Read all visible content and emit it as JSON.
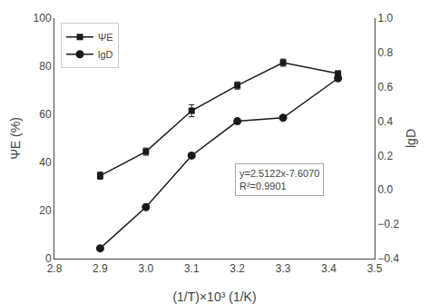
{
  "chart_data": {
    "type": "line",
    "x": [
      2.9,
      3.0,
      3.1,
      3.2,
      3.3,
      3.42
    ],
    "xlabel": "(1/T)×10³ (1/K)",
    "ylabel": "ΨE (%)",
    "y2label": "lgD",
    "series": [
      {
        "name": "ΨE",
        "color": "#1a1a1a",
        "marker": "square",
        "line_style": "solid",
        "values": [
          34.5,
          44.5,
          61.5,
          72.0,
          81.5,
          77.0
        ],
        "errors": [
          1.5,
          1.5,
          2.5,
          1.5,
          1.5,
          1.0
        ]
      },
      {
        "name": "lgD",
        "axis": "y2",
        "color": "#1a1a1a",
        "marker": "circle",
        "line_style": "solid",
        "values": [
          -0.34,
          -0.1,
          0.2,
          0.4,
          0.42,
          0.65
        ]
      }
    ],
    "annotations": [
      "y=2.5122x-7.6070",
      "R²=0.9901"
    ],
    "xlim": [
      2.8,
      3.5
    ],
    "xticks": [
      {
        "value": 2.8,
        "label": "2.8"
      },
      {
        "value": 2.9,
        "label": "2.9"
      },
      {
        "value": 3.0,
        "label": "3.0"
      },
      {
        "value": 3.1,
        "label": "3.1"
      },
      {
        "value": 3.2,
        "label": "3.2"
      },
      {
        "value": 3.3,
        "label": "3.3"
      },
      {
        "value": 3.4,
        "label": "3.4"
      },
      {
        "value": 3.5,
        "label": "3.5"
      }
    ],
    "ylim": [
      0,
      100
    ],
    "yticks": [
      0,
      20,
      40,
      60,
      80,
      100
    ],
    "y2lim": [
      -0.4,
      1.0
    ],
    "y2ticks": [
      {
        "value": -0.4,
        "label": "−0.4"
      },
      {
        "value": -0.2,
        "label": "−0.2"
      },
      {
        "value": 0.0,
        "label": "0.0"
      },
      {
        "value": 0.2,
        "label": "0.2"
      },
      {
        "value": 0.4,
        "label": "0.4"
      },
      {
        "value": 0.6,
        "label": "0.6"
      },
      {
        "value": 0.8,
        "label": "0.8"
      },
      {
        "value": 1.0,
        "label": "1.0"
      }
    ],
    "legend": "upper left",
    "grid": false
  }
}
